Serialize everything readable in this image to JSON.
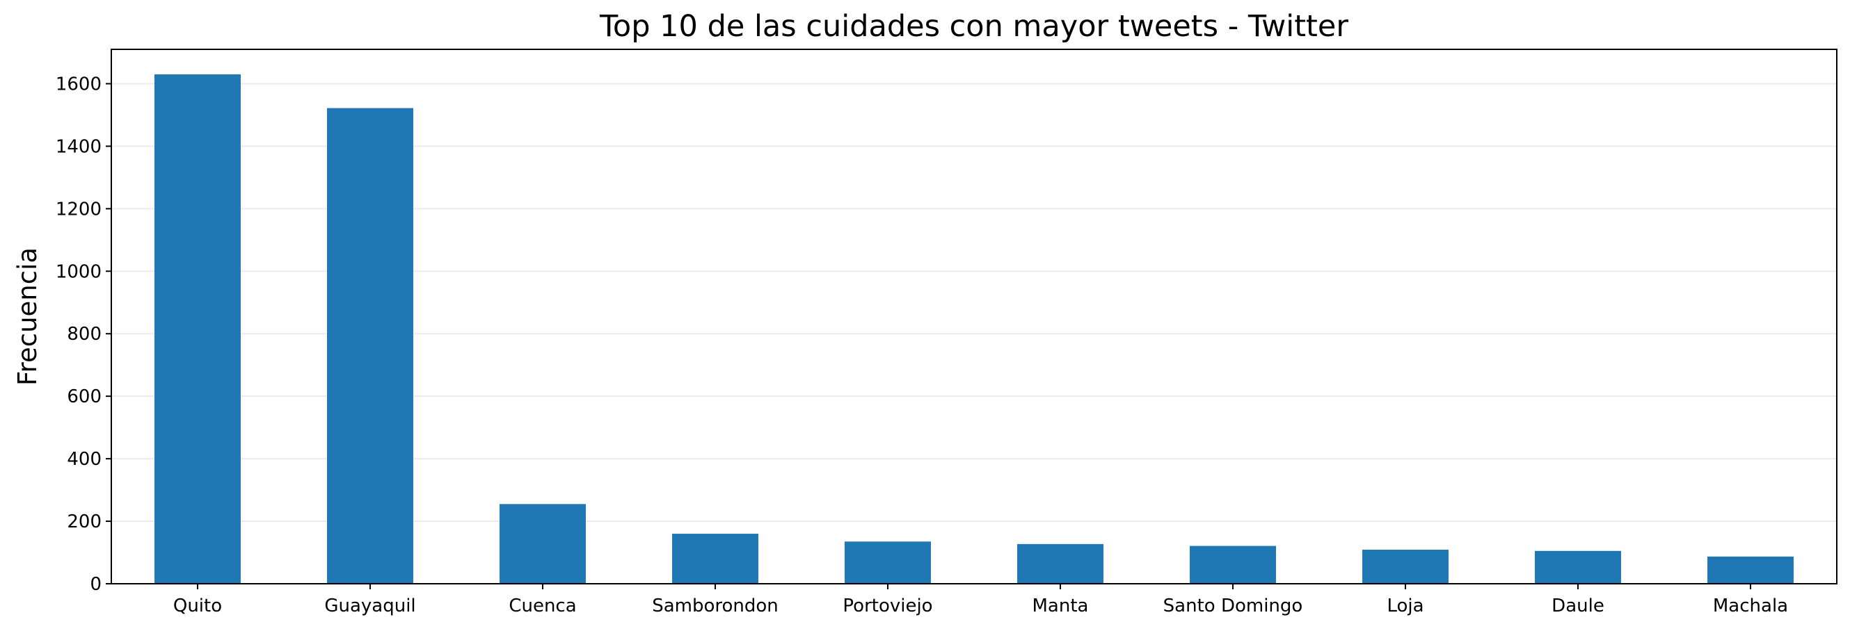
{
  "chart_data": {
    "type": "bar",
    "title": "Top 10 de las cuidades con mayor tweets - Twitter",
    "xlabel": "",
    "ylabel": "Frecuencia",
    "categories": [
      "Quito",
      "Guayaquil",
      "Cuenca",
      "Samborondon",
      "Portoviejo",
      "Manta",
      "Santo Domingo",
      "Loja",
      "Daule",
      "Machala"
    ],
    "values": [
      1630,
      1522,
      255,
      160,
      135,
      127,
      121,
      109,
      105,
      87
    ],
    "ylim": [
      0,
      1710
    ],
    "yticks": [
      0,
      200,
      400,
      600,
      800,
      1000,
      1200,
      1400,
      1600
    ],
    "grid": "horizontal",
    "bar_color": "#1f77b4",
    "grid_color": "#ebebeb"
  }
}
